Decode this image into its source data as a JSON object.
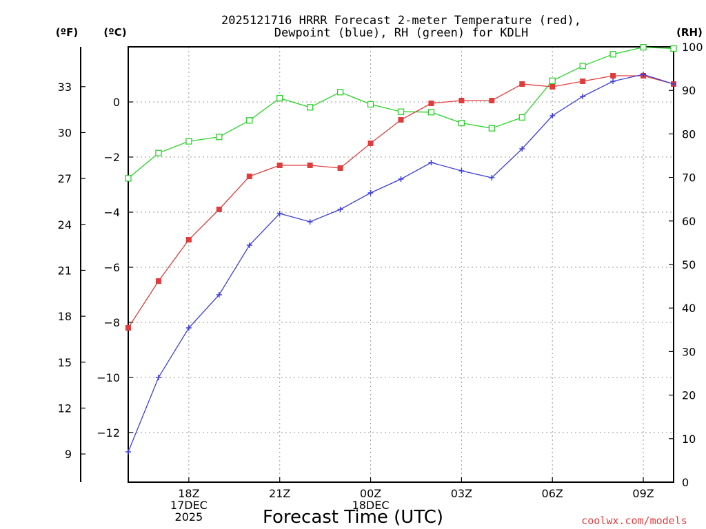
{
  "chart_data": {
    "type": "line",
    "title_lines": [
      "2025121716 HRRR Forecast 2-meter Temperature (red),",
      "Dewpoint (blue), RH (green) for KDLH"
    ],
    "xlabel": "Forecast Time (UTC)",
    "credit": "coolwx.com/models",
    "axis_headers": {
      "fahrenheit": "(ºF)",
      "celsius": "(ºC)",
      "rh": "(RH)"
    },
    "x_hours": [
      16,
      17,
      18,
      19,
      20,
      21,
      22,
      23,
      24,
      25,
      26,
      27,
      28,
      29,
      30,
      31,
      32,
      33,
      34
    ],
    "x_ticks": [
      {
        "hour": 18,
        "lines": [
          "18Z",
          "17DEC",
          "2025"
        ]
      },
      {
        "hour": 21,
        "lines": [
          "21Z"
        ]
      },
      {
        "hour": 24,
        "lines": [
          "00Z",
          "18DEC"
        ]
      },
      {
        "hour": 27,
        "lines": [
          "03Z"
        ]
      },
      {
        "hour": 30,
        "lines": [
          "06Z"
        ]
      },
      {
        "hour": 33,
        "lines": [
          "09Z"
        ]
      }
    ],
    "x_range": [
      16,
      34
    ],
    "celsius_axis": {
      "range": [
        -13.8,
        2
      ],
      "ticks": [
        0,
        -2,
        -4,
        -6,
        -8,
        -10,
        -12
      ]
    },
    "fahrenheit_axis": {
      "ticks": [
        33,
        30,
        27,
        24,
        21,
        18,
        15,
        12,
        9
      ]
    },
    "rh_axis": {
      "range": [
        0,
        100
      ],
      "ticks": [
        100,
        90,
        80,
        70,
        60,
        50,
        40,
        30,
        20,
        10,
        0
      ]
    },
    "series": [
      {
        "name": "Temperature",
        "unit": "°C",
        "color": "#e03c3c",
        "marker": "filled-square",
        "values": [
          -8.2,
          -6.5,
          -5.0,
          -3.9,
          -2.7,
          -2.3,
          -2.3,
          -2.4,
          -1.5,
          -0.65,
          -0.05,
          0.05,
          0.05,
          0.65,
          0.55,
          0.75,
          0.95,
          0.95,
          0.65
        ]
      },
      {
        "name": "Dewpoint",
        "unit": "°C",
        "color": "#3c3ce0",
        "marker": "plus",
        "values": [
          -12.7,
          -10.0,
          -8.2,
          -7.0,
          -5.2,
          -4.05,
          -4.35,
          -3.9,
          -3.3,
          -2.8,
          -2.2,
          -2.5,
          -2.75,
          -1.7,
          -0.5,
          0.2,
          0.75,
          1.0,
          0.65
        ]
      },
      {
        "name": "RH",
        "unit": "%",
        "color": "#28d228",
        "marker": "open-square",
        "values": [
          69.8,
          75.6,
          78.3,
          79.3,
          83.1,
          88.2,
          86.1,
          89.6,
          86.8,
          85.1,
          85.0,
          82.5,
          81.3,
          83.8,
          92.2,
          95.6,
          98.3,
          99.9,
          99.6
        ]
      }
    ]
  }
}
